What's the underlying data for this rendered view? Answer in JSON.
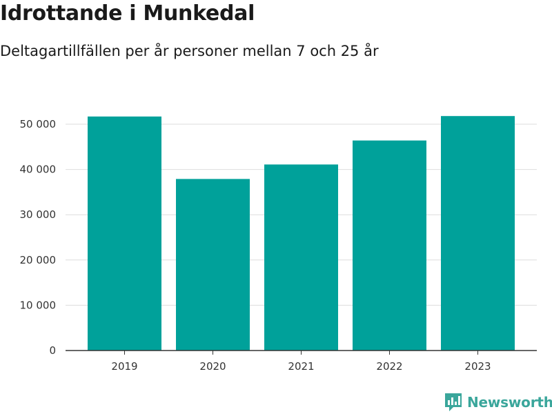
{
  "header": {
    "title": "Idrottande i Munkedal",
    "subtitle": "Deltagartillfällen per år personer mellan 7 och 25 år"
  },
  "brand": {
    "name": "Newsworthy",
    "icon": "newsworthy-logo-icon",
    "color": "#3aa69b"
  },
  "chart_data": {
    "type": "bar",
    "title": "Idrottande i Munkedal",
    "subtitle": "Deltagartillfällen per år personer mellan 7 och 25 år",
    "categories": [
      "2019",
      "2020",
      "2021",
      "2022",
      "2023"
    ],
    "values": [
      51700,
      37900,
      41100,
      46400,
      51800
    ],
    "ylim": [
      0,
      50000
    ],
    "yticks": [
      0,
      10000,
      20000,
      30000,
      40000,
      50000
    ],
    "ytick_labels": [
      "0",
      "10 000",
      "20 000",
      "30 000",
      "40 000",
      "50 000"
    ],
    "grid": true,
    "bar_color": "#00a19a",
    "xlabel": "",
    "ylabel": ""
  }
}
